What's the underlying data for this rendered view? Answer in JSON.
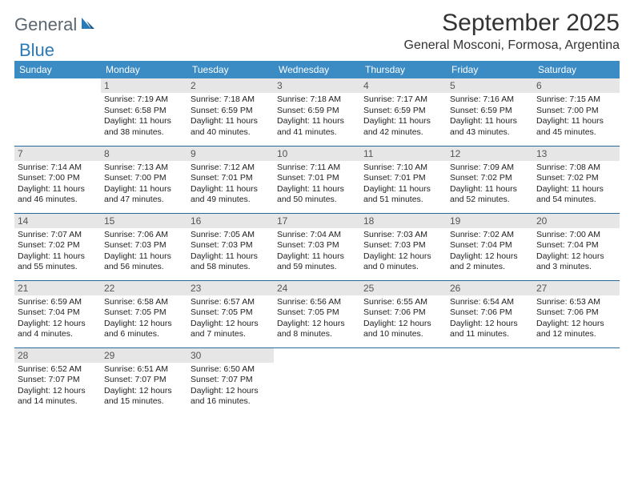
{
  "logo": {
    "general": "General",
    "blue": "Blue"
  },
  "title": "September 2025",
  "location": "General Mosconi, Formosa, Argentina",
  "colors": {
    "header_bg": "#3b8bc5",
    "row_divider": "#2a6a9a",
    "daynum_bg": "#e6e6e6",
    "logo_blue": "#2a7ab8",
    "logo_grey": "#5b6670"
  },
  "weekdays": [
    "Sunday",
    "Monday",
    "Tuesday",
    "Wednesday",
    "Thursday",
    "Friday",
    "Saturday"
  ],
  "days": [
    {
      "n": 1,
      "sr": "7:19 AM",
      "ss": "6:58 PM",
      "dl": "11 hours and 38 minutes."
    },
    {
      "n": 2,
      "sr": "7:18 AM",
      "ss": "6:59 PM",
      "dl": "11 hours and 40 minutes."
    },
    {
      "n": 3,
      "sr": "7:18 AM",
      "ss": "6:59 PM",
      "dl": "11 hours and 41 minutes."
    },
    {
      "n": 4,
      "sr": "7:17 AM",
      "ss": "6:59 PM",
      "dl": "11 hours and 42 minutes."
    },
    {
      "n": 5,
      "sr": "7:16 AM",
      "ss": "6:59 PM",
      "dl": "11 hours and 43 minutes."
    },
    {
      "n": 6,
      "sr": "7:15 AM",
      "ss": "7:00 PM",
      "dl": "11 hours and 45 minutes."
    },
    {
      "n": 7,
      "sr": "7:14 AM",
      "ss": "7:00 PM",
      "dl": "11 hours and 46 minutes."
    },
    {
      "n": 8,
      "sr": "7:13 AM",
      "ss": "7:00 PM",
      "dl": "11 hours and 47 minutes."
    },
    {
      "n": 9,
      "sr": "7:12 AM",
      "ss": "7:01 PM",
      "dl": "11 hours and 49 minutes."
    },
    {
      "n": 10,
      "sr": "7:11 AM",
      "ss": "7:01 PM",
      "dl": "11 hours and 50 minutes."
    },
    {
      "n": 11,
      "sr": "7:10 AM",
      "ss": "7:01 PM",
      "dl": "11 hours and 51 minutes."
    },
    {
      "n": 12,
      "sr": "7:09 AM",
      "ss": "7:02 PM",
      "dl": "11 hours and 52 minutes."
    },
    {
      "n": 13,
      "sr": "7:08 AM",
      "ss": "7:02 PM",
      "dl": "11 hours and 54 minutes."
    },
    {
      "n": 14,
      "sr": "7:07 AM",
      "ss": "7:02 PM",
      "dl": "11 hours and 55 minutes."
    },
    {
      "n": 15,
      "sr": "7:06 AM",
      "ss": "7:03 PM",
      "dl": "11 hours and 56 minutes."
    },
    {
      "n": 16,
      "sr": "7:05 AM",
      "ss": "7:03 PM",
      "dl": "11 hours and 58 minutes."
    },
    {
      "n": 17,
      "sr": "7:04 AM",
      "ss": "7:03 PM",
      "dl": "11 hours and 59 minutes."
    },
    {
      "n": 18,
      "sr": "7:03 AM",
      "ss": "7:03 PM",
      "dl": "12 hours and 0 minutes."
    },
    {
      "n": 19,
      "sr": "7:02 AM",
      "ss": "7:04 PM",
      "dl": "12 hours and 2 minutes."
    },
    {
      "n": 20,
      "sr": "7:00 AM",
      "ss": "7:04 PM",
      "dl": "12 hours and 3 minutes."
    },
    {
      "n": 21,
      "sr": "6:59 AM",
      "ss": "7:04 PM",
      "dl": "12 hours and 4 minutes."
    },
    {
      "n": 22,
      "sr": "6:58 AM",
      "ss": "7:05 PM",
      "dl": "12 hours and 6 minutes."
    },
    {
      "n": 23,
      "sr": "6:57 AM",
      "ss": "7:05 PM",
      "dl": "12 hours and 7 minutes."
    },
    {
      "n": 24,
      "sr": "6:56 AM",
      "ss": "7:05 PM",
      "dl": "12 hours and 8 minutes."
    },
    {
      "n": 25,
      "sr": "6:55 AM",
      "ss": "7:06 PM",
      "dl": "12 hours and 10 minutes."
    },
    {
      "n": 26,
      "sr": "6:54 AM",
      "ss": "7:06 PM",
      "dl": "12 hours and 11 minutes."
    },
    {
      "n": 27,
      "sr": "6:53 AM",
      "ss": "7:06 PM",
      "dl": "12 hours and 12 minutes."
    },
    {
      "n": 28,
      "sr": "6:52 AM",
      "ss": "7:07 PM",
      "dl": "12 hours and 14 minutes."
    },
    {
      "n": 29,
      "sr": "6:51 AM",
      "ss": "7:07 PM",
      "dl": "12 hours and 15 minutes."
    },
    {
      "n": 30,
      "sr": "6:50 AM",
      "ss": "7:07 PM",
      "dl": "12 hours and 16 minutes."
    }
  ],
  "labels": {
    "sunrise": "Sunrise:",
    "sunset": "Sunset:",
    "daylight": "Daylight:"
  },
  "start_weekday": 1
}
